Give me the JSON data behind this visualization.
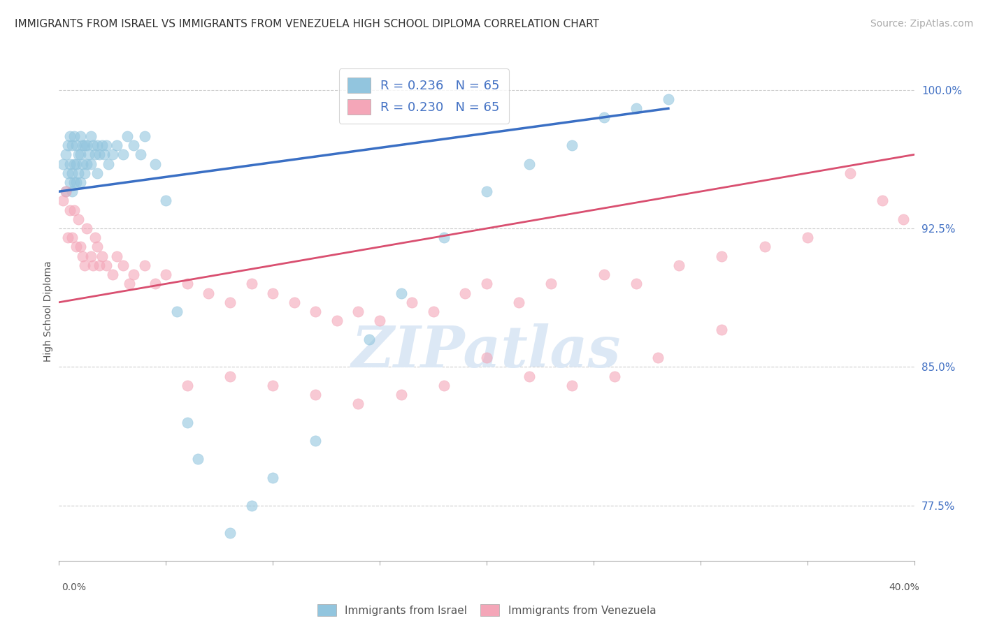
{
  "title": "IMMIGRANTS FROM ISRAEL VS IMMIGRANTS FROM VENEZUELA HIGH SCHOOL DIPLOMA CORRELATION CHART",
  "source": "Source: ZipAtlas.com",
  "ylabel": "High School Diploma",
  "right_ytick_vals": [
    0.775,
    0.85,
    0.925,
    1.0
  ],
  "xmin": 0.0,
  "xmax": 0.4,
  "ymin": 0.745,
  "ymax": 1.015,
  "legend_israel": "R = 0.236   N = 65",
  "legend_venezuela": "R = 0.230   N = 65",
  "israel_color": "#92c5de",
  "venezuela_color": "#f4a6b8",
  "trend_israel_color": "#3a6fc4",
  "trend_venezuela_color": "#d94f70",
  "watermark_color": "#dce8f5",
  "israel_x": [
    0.002,
    0.003,
    0.003,
    0.004,
    0.004,
    0.005,
    0.005,
    0.005,
    0.006,
    0.006,
    0.006,
    0.007,
    0.007,
    0.007,
    0.008,
    0.008,
    0.008,
    0.009,
    0.009,
    0.01,
    0.01,
    0.01,
    0.011,
    0.011,
    0.012,
    0.012,
    0.013,
    0.013,
    0.014,
    0.015,
    0.015,
    0.016,
    0.017,
    0.018,
    0.018,
    0.019,
    0.02,
    0.021,
    0.022,
    0.023,
    0.025,
    0.027,
    0.03,
    0.032,
    0.035,
    0.038,
    0.04,
    0.045,
    0.05,
    0.055,
    0.06,
    0.065,
    0.08,
    0.09,
    0.1,
    0.12,
    0.145,
    0.16,
    0.18,
    0.2,
    0.22,
    0.24,
    0.255,
    0.27,
    0.285
  ],
  "israel_y": [
    0.96,
    0.965,
    0.945,
    0.97,
    0.955,
    0.975,
    0.96,
    0.95,
    0.97,
    0.955,
    0.945,
    0.975,
    0.96,
    0.95,
    0.97,
    0.96,
    0.95,
    0.965,
    0.955,
    0.975,
    0.965,
    0.95,
    0.97,
    0.96,
    0.97,
    0.955,
    0.97,
    0.96,
    0.965,
    0.975,
    0.96,
    0.97,
    0.965,
    0.97,
    0.955,
    0.965,
    0.97,
    0.965,
    0.97,
    0.96,
    0.965,
    0.97,
    0.965,
    0.975,
    0.97,
    0.965,
    0.975,
    0.96,
    0.94,
    0.88,
    0.82,
    0.8,
    0.76,
    0.775,
    0.79,
    0.81,
    0.865,
    0.89,
    0.92,
    0.945,
    0.96,
    0.97,
    0.985,
    0.99,
    0.995
  ],
  "venezuela_x": [
    0.002,
    0.003,
    0.004,
    0.005,
    0.006,
    0.007,
    0.008,
    0.009,
    0.01,
    0.011,
    0.012,
    0.013,
    0.015,
    0.016,
    0.017,
    0.018,
    0.019,
    0.02,
    0.022,
    0.025,
    0.027,
    0.03,
    0.033,
    0.035,
    0.04,
    0.045,
    0.05,
    0.06,
    0.07,
    0.08,
    0.09,
    0.1,
    0.11,
    0.12,
    0.13,
    0.14,
    0.15,
    0.165,
    0.175,
    0.19,
    0.2,
    0.215,
    0.23,
    0.255,
    0.27,
    0.29,
    0.31,
    0.33,
    0.35,
    0.37,
    0.385,
    0.395,
    0.31,
    0.28,
    0.26,
    0.24,
    0.22,
    0.2,
    0.18,
    0.16,
    0.14,
    0.12,
    0.1,
    0.08,
    0.06
  ],
  "venezuela_y": [
    0.94,
    0.945,
    0.92,
    0.935,
    0.92,
    0.935,
    0.915,
    0.93,
    0.915,
    0.91,
    0.905,
    0.925,
    0.91,
    0.905,
    0.92,
    0.915,
    0.905,
    0.91,
    0.905,
    0.9,
    0.91,
    0.905,
    0.895,
    0.9,
    0.905,
    0.895,
    0.9,
    0.895,
    0.89,
    0.885,
    0.895,
    0.89,
    0.885,
    0.88,
    0.875,
    0.88,
    0.875,
    0.885,
    0.88,
    0.89,
    0.895,
    0.885,
    0.895,
    0.9,
    0.895,
    0.905,
    0.91,
    0.915,
    0.92,
    0.955,
    0.94,
    0.93,
    0.87,
    0.855,
    0.845,
    0.84,
    0.845,
    0.855,
    0.84,
    0.835,
    0.83,
    0.835,
    0.84,
    0.845,
    0.84
  ],
  "israel_trend_x0": 0.0,
  "israel_trend_x1": 0.285,
  "israel_trend_y0": 0.945,
  "israel_trend_y1": 0.99,
  "venezuela_trend_x0": 0.0,
  "venezuela_trend_x1": 0.4,
  "venezuela_trend_y0": 0.885,
  "venezuela_trend_y1": 0.965,
  "title_fontsize": 11,
  "source_fontsize": 10,
  "axis_label_fontsize": 10,
  "tick_fontsize": 10,
  "legend_fontsize": 13,
  "watermark_fontsize": 60
}
